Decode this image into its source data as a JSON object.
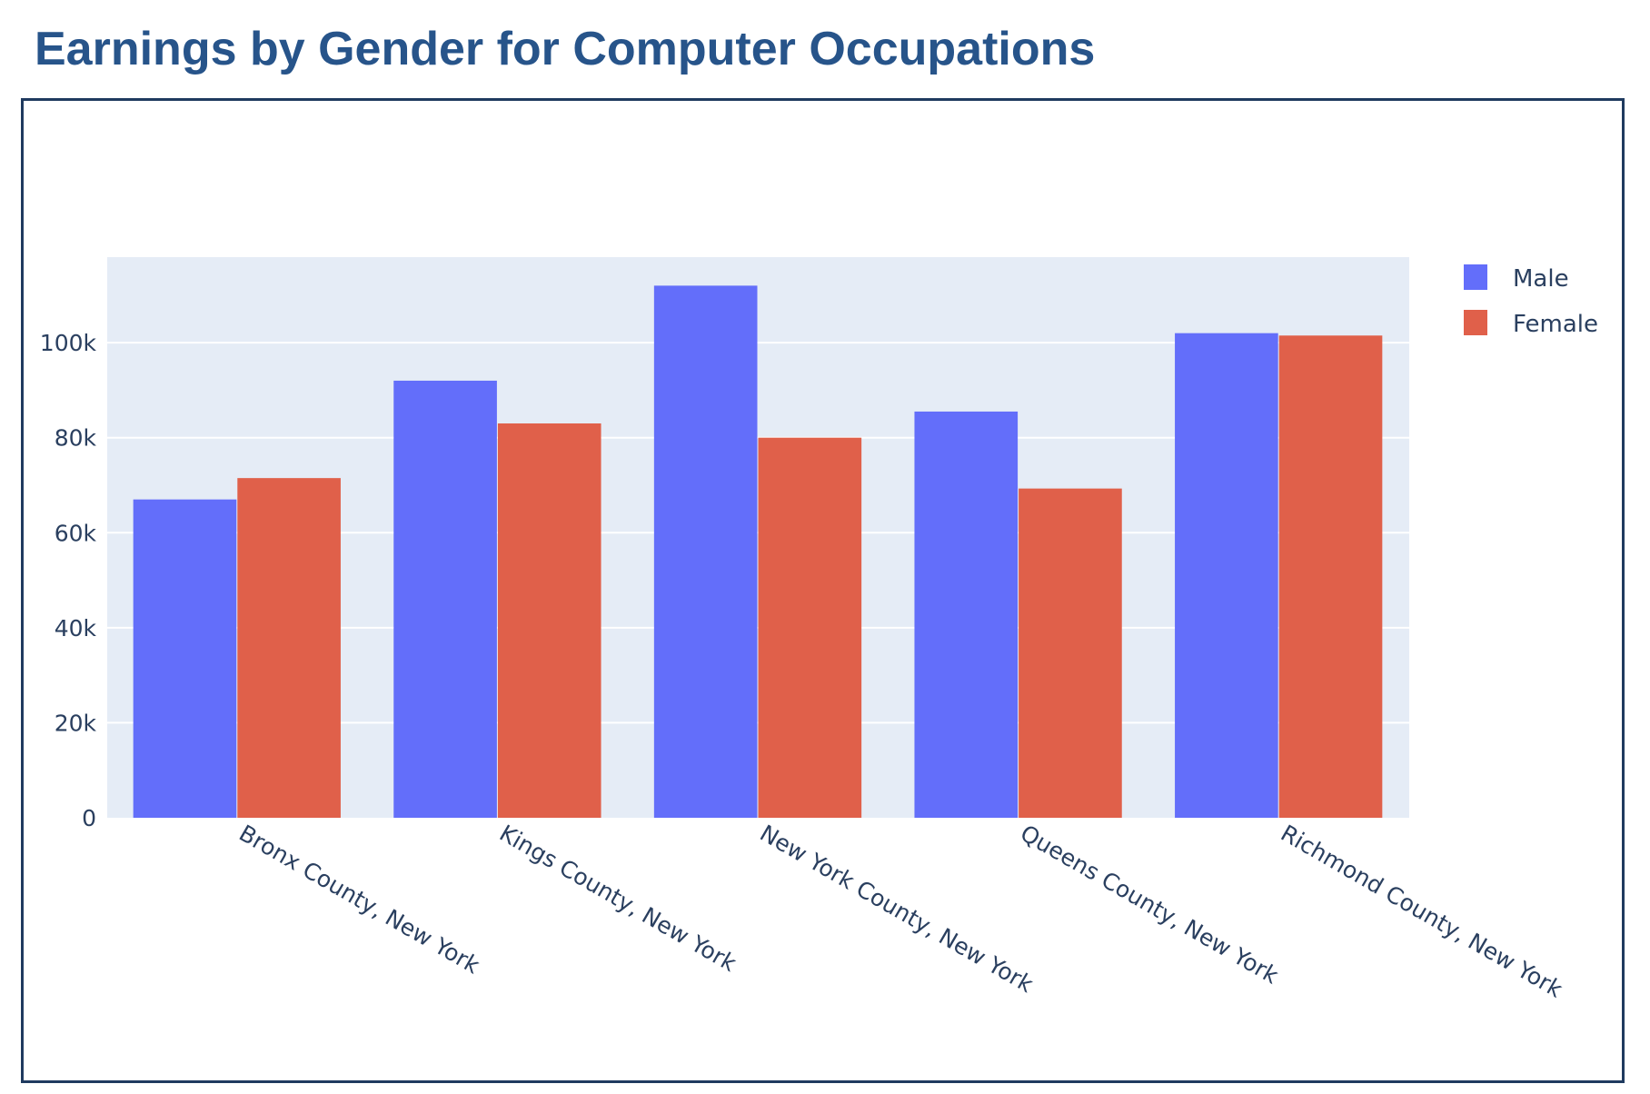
{
  "page": {
    "title": "Earnings by Gender for Computer Occupations"
  },
  "colors": {
    "title": "#27548a",
    "frame_border": "#1f3a5f",
    "plot_background": "#e5ecf6",
    "gridline": "#ffffff",
    "axis_text": "#2a3f5f",
    "male": "#636efa",
    "female": "#e0604a"
  },
  "chart_data": {
    "type": "bar",
    "title": "",
    "xlabel": "",
    "ylabel": "",
    "categories": [
      "Bronx County, New York",
      "Kings County, New York",
      "New York County, New York",
      "Queens County, New York",
      "Richmond County, New York"
    ],
    "series": [
      {
        "name": "Male",
        "color": "#636efa",
        "values": [
          67000,
          92000,
          112000,
          85500,
          102000
        ]
      },
      {
        "name": "Female",
        "color": "#e0604a",
        "values": [
          71500,
          83000,
          80000,
          69300,
          101500
        ]
      }
    ],
    "ylim": [
      0,
      118000
    ],
    "y_ticks": [
      0,
      20000,
      40000,
      60000,
      80000,
      100000
    ],
    "y_tick_labels": [
      "0",
      "20k",
      "40k",
      "60k",
      "80k",
      "100k"
    ],
    "grid": true,
    "legend_position": "top-right",
    "x_label_rotation": "rotated 30 degrees clockwise"
  }
}
